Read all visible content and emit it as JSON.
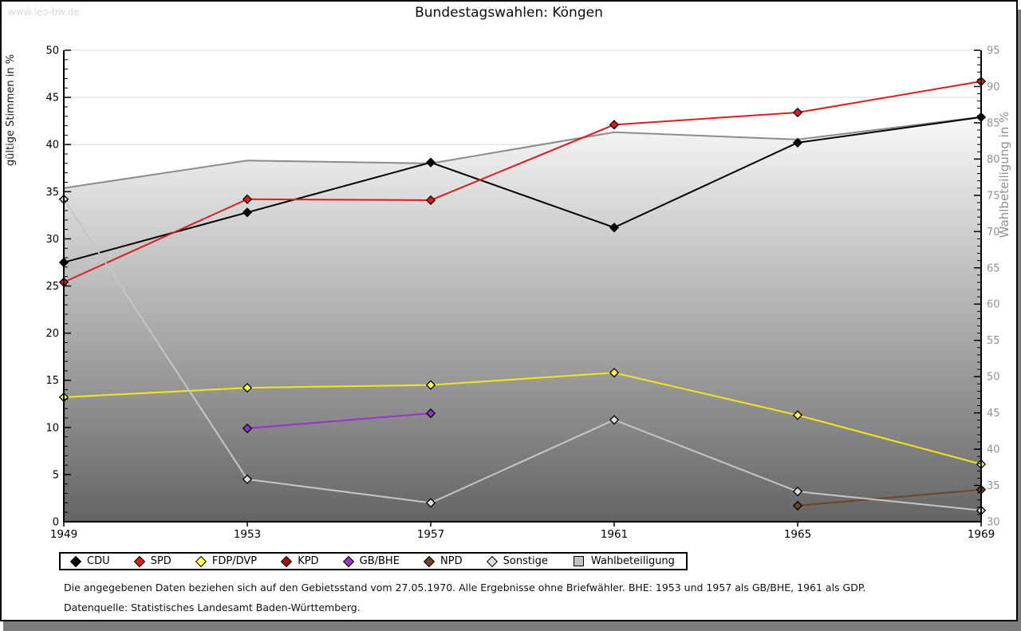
{
  "watermark": "www.leo-bw.de",
  "title": "Bundestagswahlen: Köngen",
  "footnotes": [
    "Die angegebenen Daten beziehen sich auf den Gebietsstand vom 27.05.1970. Alle Ergebnisse ohne Briefwähler. BHE: 1953 und 1957 als GB/BHE, 1961 als GDP.",
    "Datenquelle: Statistisches Landesamt Baden-Württemberg."
  ],
  "chart_data": {
    "type": "line",
    "title": "Bundestagswahlen: Köngen",
    "categories": [
      "1949",
      "1953",
      "1957",
      "1961",
      "1965",
      "1969"
    ],
    "y_left": {
      "label": "gültige Stimmen in %",
      "min": 0,
      "max": 50,
      "tick_step": 5,
      "minor_step": 1
    },
    "y_right": {
      "label": "Wahlbeteiligung in %",
      "min": 30,
      "max": 95,
      "tick_step": 5,
      "minor_step": 1
    },
    "grid": true,
    "legend_position": "bottom",
    "series": [
      {
        "name": "CDU",
        "type": "line",
        "axis": "left",
        "color": "#000000",
        "values": [
          27.5,
          32.8,
          38.1,
          31.2,
          40.2,
          42.9
        ]
      },
      {
        "name": "SPD",
        "type": "line",
        "axis": "left",
        "color": "#d7201f",
        "values": [
          25.4,
          34.2,
          34.1,
          42.1,
          43.4,
          46.7
        ]
      },
      {
        "name": "FDP/DVP",
        "type": "line",
        "axis": "left",
        "color": "#efe81c",
        "marker_fill": "#ffff47",
        "values": [
          13.2,
          14.2,
          14.5,
          15.8,
          11.3,
          6.1
        ]
      },
      {
        "name": "KPD",
        "type": "line",
        "axis": "left",
        "color": "#aa0f0f",
        "values": [
          null,
          null,
          null,
          null,
          null,
          null
        ]
      },
      {
        "name": "GB/BHE",
        "type": "line",
        "axis": "left",
        "color": "#9933cc",
        "values": [
          null,
          9.9,
          11.5,
          null,
          null,
          null
        ]
      },
      {
        "name": "NPD",
        "type": "line",
        "axis": "left",
        "color": "#6e4423",
        "values": [
          null,
          null,
          null,
          null,
          1.7,
          3.4
        ]
      },
      {
        "name": "Sonstige",
        "type": "line",
        "axis": "left",
        "color": "#c6c6c6",
        "marker_fill": "#dcdcdc",
        "values": [
          34.2,
          4.5,
          2.0,
          10.8,
          3.2,
          1.2
        ]
      },
      {
        "name": "Wahlbeteiligung",
        "type": "area",
        "axis": "right",
        "color": "#8c8c8c",
        "legend_fill": "#c0c0c0",
        "values": [
          76.0,
          79.8,
          79.4,
          83.7,
          82.7,
          85.8
        ]
      }
    ]
  },
  "colors": {
    "grid": "#dadada",
    "axis": "#000000",
    "right_axis_text": "#919191",
    "area_gradient_top": "#fafafa",
    "area_gradient_bottom": "#646464",
    "shadow": "#7c7c7c"
  }
}
